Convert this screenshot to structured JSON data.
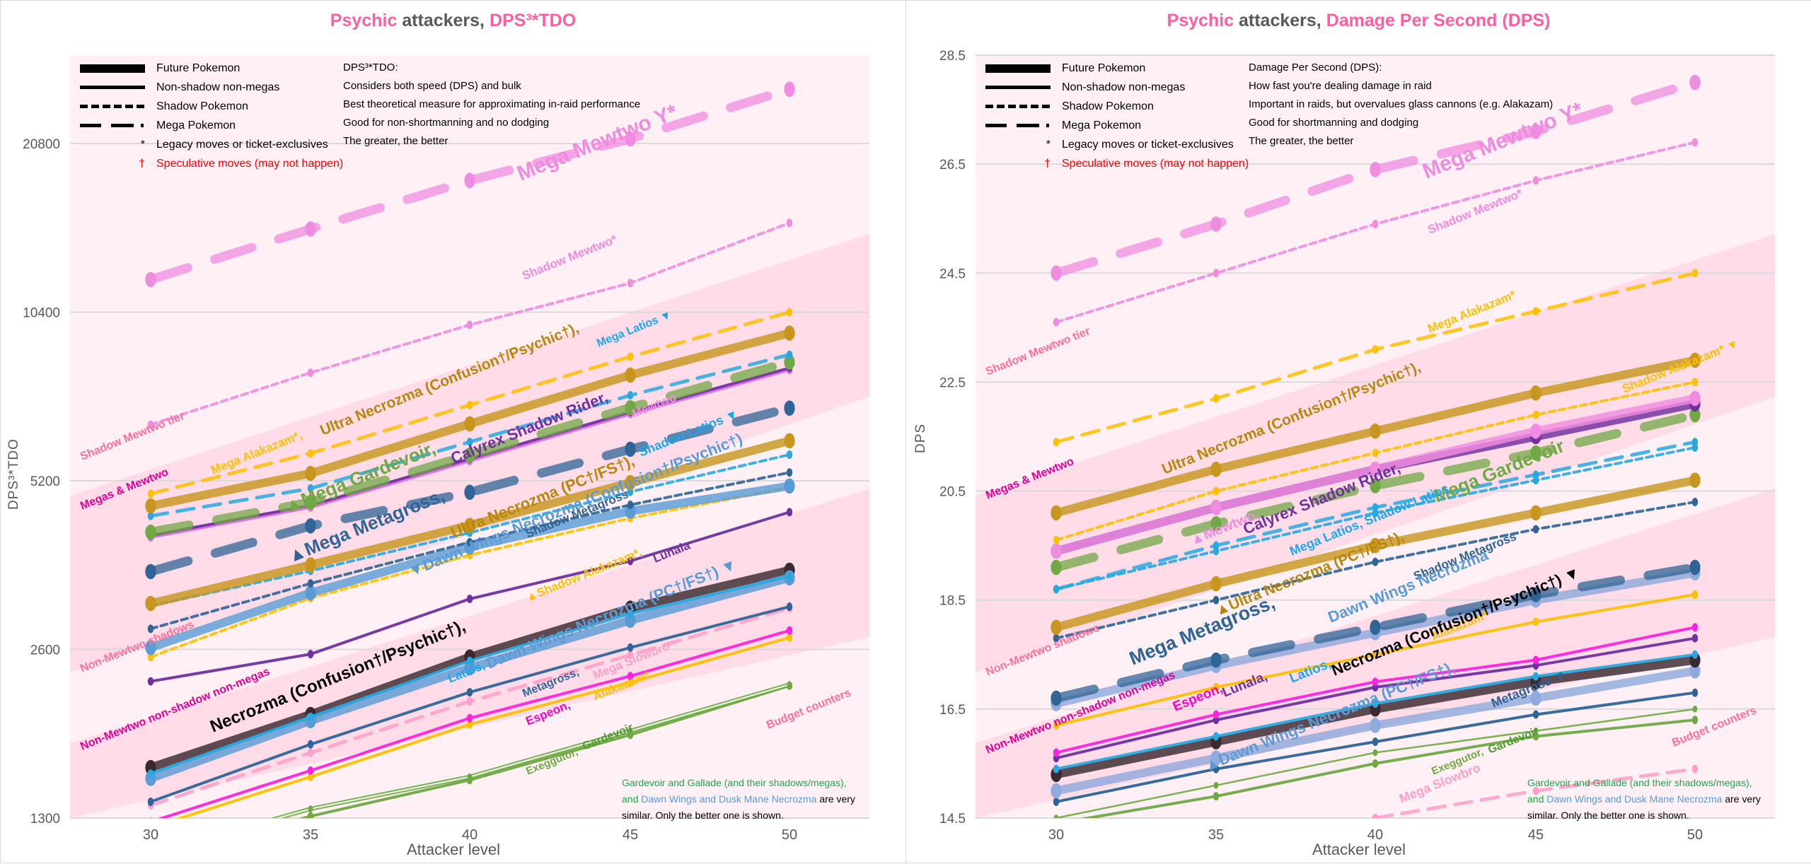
{
  "legend": {
    "future": "Future Pokemon",
    "non_shadow": "Non-shadow non-megas",
    "shadow": "Shadow Pokemon",
    "mega": "Mega Pokemon",
    "legacy_mark": "*",
    "legacy": "Legacy moves or ticket-exclusives",
    "spec_mark": "†",
    "spec": "Speculative moves (may not happen)"
  },
  "note": {
    "part1": "Gardevoir and Gallade (and their shadows/megas),",
    "part2_and": "and ",
    "part2_blue": "Dawn Wings and Dusk Mane Necrozma",
    "part2_rest": " are very",
    "part3": "similar. Only the better one is shown."
  },
  "chart_data": [
    {
      "type": "line",
      "title": "Psychic attackers, DPS³*TDO",
      "title_parts": {
        "a": "Psychic",
        "b": " attackers, ",
        "c": "DPS³*TDO"
      },
      "xlabel": "Attacker level",
      "ylabel": "DPS³*TDO",
      "yscale": "log2",
      "ylim": [
        1300,
        26000
      ],
      "yticks": [
        "1300",
        "2600",
        "5200",
        "10400",
        "20800"
      ],
      "ytick_values": [
        1300,
        2600,
        5200,
        10400,
        20800
      ],
      "x": [
        30,
        35,
        40,
        45,
        50
      ],
      "xticks": [
        "30",
        "35",
        "40",
        "45",
        "50"
      ],
      "grid": true,
      "legend_position": "top-left",
      "description": {
        "heading": "DPS³*TDO:",
        "lines": [
          "Considers both speed (DPS) and bulk",
          "Best theoretical measure for approximating in-raid performance",
          "Good for non-shortmanning and no dodging",
          "The greater, the better"
        ]
      },
      "tiers": [
        {
          "label": "Shadow Mewtwo tier"
        },
        {
          "label": "Megas & Mewtwo"
        },
        {
          "label": "Non-Mewtwo shadows"
        },
        {
          "label": "Non-Mewtwo non-shadow non-megas"
        },
        {
          "label": "Budget counters"
        }
      ],
      "series": [
        {
          "name": "Mega Mewtwo Y*",
          "color": "#f08ce0",
          "style": "mega",
          "values": [
            11890,
            14640,
            17870,
            21200,
            26000
          ]
        },
        {
          "name": "Shadow Mewtwo*",
          "color": "#f08ce0",
          "style": "shadow",
          "values": [
            6550,
            8110,
            9870,
            11720,
            15010
          ]
        },
        {
          "name": "Mega Alakazam*",
          "color": "#ffc000",
          "style": "mega-thin",
          "values": [
            4930,
            5820,
            7100,
            8660,
            10400
          ]
        },
        {
          "name": "Ultra Necrozma (Confusion†/Psychic†)",
          "color": "#c8961e",
          "style": "future",
          "values": [
            4690,
            5360,
            6570,
            8030,
            9540
          ]
        },
        {
          "name": "Mega Latios",
          "color": "#29a8e0",
          "style": "mega-thin",
          "values": [
            4500,
            5040,
            6100,
            7390,
            8730
          ]
        },
        {
          "name": "Mega Gardevoir",
          "color": "#70a844",
          "style": "mega",
          "values": [
            4210,
            4760,
            5780,
            7020,
            8470
          ]
        },
        {
          "name": "Calyrex Shadow Rider",
          "color": "#7030a0",
          "style": "normal",
          "values": [
            4150,
            4700,
            5690,
            6900,
            8270
          ]
        },
        {
          "name": "Mewtwo",
          "color": "#e070e0",
          "style": "normal",
          "values": [
            4120,
            4660,
            5640,
            6840,
            8200
          ]
        },
        {
          "name": "Mega Metagross",
          "color": "#2f6496",
          "style": "mega",
          "values": [
            3580,
            4320,
            4960,
            5920,
            7010
          ]
        },
        {
          "name": "Ultra Necrozma (PC†/FS†)",
          "color": "#c8961e",
          "style": "future",
          "values": [
            3140,
            3680,
            4330,
            5160,
            6130
          ]
        },
        {
          "name": "Shadow Latios",
          "color": "#29a8e0",
          "style": "shadow",
          "values": [
            3110,
            3590,
            4200,
            4970,
            5790
          ]
        },
        {
          "name": "Shadow Metagross",
          "color": "#2f6496",
          "style": "shadow",
          "values": [
            2830,
            3410,
            4040,
            4710,
            5380
          ]
        },
        {
          "name": "Dawn Wings Necrozma (Confusion†/Psychic†)",
          "color": "#5b9bd5",
          "style": "future",
          "values": [
            2620,
            3280,
            3960,
            4590,
            5090
          ]
        },
        {
          "name": "Shadow Alakazam*",
          "color": "#ffc000",
          "style": "shadow",
          "values": [
            2520,
            3210,
            3830,
            4460,
            5060
          ]
        },
        {
          "name": "Lunala",
          "color": "#7030a0",
          "style": "normal",
          "values": [
            2280,
            2550,
            3200,
            3740,
            4570
          ]
        },
        {
          "name": "Latios",
          "color": "#29a8e0",
          "style": "normal",
          "values": [
            1560,
            1970,
            2480,
            3010,
            3510
          ]
        },
        {
          "name": "Dawn Wings Necrozma (PC†/FS†)",
          "color": "#5b9bd5",
          "style": "future",
          "values": [
            1530,
            1940,
            2410,
            2930,
            3490
          ]
        },
        {
          "name": "Necrozma (Confusion†/Psychic†)",
          "color": "#3a2a30",
          "style": "future",
          "values": [
            1600,
            1990,
            2520,
            3080,
            3600
          ]
        },
        {
          "name": "Metagross",
          "color": "#2f6496",
          "style": "normal",
          "values": [
            1390,
            1760,
            2180,
            2620,
            3100
          ]
        },
        {
          "name": "Mega Slowbro",
          "color": "#ff9ec8",
          "style": "mega-thin",
          "values": [
            1370,
            1700,
            2100,
            2540,
            3080
          ]
        },
        {
          "name": "Espeon",
          "color": "#ff22e0",
          "style": "normal",
          "values": [
            1280,
            1580,
            1960,
            2330,
            2810
          ]
        },
        {
          "name": "Alakazam*",
          "color": "#ffc000",
          "style": "normal",
          "values": [
            1250,
            1540,
            1910,
            2270,
            2730
          ]
        },
        {
          "name": "Exeggutor",
          "color": "#70a844",
          "style": "double",
          "values": [
            1120,
            1350,
            1540,
            1860,
            2250
          ]
        },
        {
          "name": "Gardevoir",
          "color": "#70a844",
          "style": "normal",
          "values": [
            1090,
            1310,
            1520,
            1830,
            2240
          ]
        }
      ],
      "annotations": [
        {
          "text": "Mega Mewtwo Y*",
          "color": "#f08ce0"
        },
        {
          "text": "Shadow Mewtwo*",
          "color": "#f08ce0"
        },
        {
          "text": "Mega Alakazam*, ",
          "color": "#ffc000"
        },
        {
          "text": "Ultra Necrozma (Confusion†/Psychic†), ",
          "color": "#b8860b"
        },
        {
          "text": "Mega Latios ▼",
          "color": "#1aa7ec"
        },
        {
          "text": "▲Mega Gardevoir, ",
          "color": "#70a844"
        },
        {
          "text": "Calyrex Shadow Rider, ",
          "color": "#7030a0"
        },
        {
          "text": "Mewtwo",
          "color": "#f08ce0"
        },
        {
          "text": "▲Mega Metagross, ",
          "color": "#2f6496"
        },
        {
          "text": "Ultra Necrozma (PC†/FS†), ",
          "color": "#b8860b"
        },
        {
          "text": "Shadow Latios ▼",
          "color": "#1aa7ec"
        },
        {
          "text": "Shadow Metagross",
          "color": "#2f6496"
        },
        {
          "text": "▼Dawn Wings Necrozma (Confusion†/Psychic†)",
          "color": "#5b9bd5"
        },
        {
          "text": "▲Shadow Alakazam*, ",
          "color": "#ffc000"
        },
        {
          "text": "Lunala",
          "color": "#7030a0"
        },
        {
          "text": "Necrozma (Confusion†/Psychic†), ",
          "color": "#000000"
        },
        {
          "text": "Latios, ",
          "color": "#1aa7ec"
        },
        {
          "text": "Dawn Wings Necrozma (PC†/FS†) ▼",
          "color": "#5b9bd5"
        },
        {
          "text": "Metagross, ",
          "color": "#2f6496"
        },
        {
          "text": "Mega Slowbro",
          "color": "#ff9ec8"
        },
        {
          "text": "Espeon, ",
          "color": "#ff00cc"
        },
        {
          "text": "Alakazam*",
          "color": "#ffc000"
        },
        {
          "text": "Exeggutor, ",
          "color": "#70a844"
        },
        {
          "text": "Gardevoir",
          "color": "#4f9a2e"
        }
      ]
    },
    {
      "type": "line",
      "title": "Psychic attackers, Damage Per Second (DPS)",
      "title_parts": {
        "a": "Psychic",
        "b": " attackers, ",
        "c": "Damage Per Second (DPS)"
      },
      "xlabel": "Attacker level",
      "ylabel": "DPS",
      "yscale": "linear",
      "ylim": [
        14.5,
        28.5
      ],
      "yticks": [
        "14.5",
        "16.5",
        "18.5",
        "20.5",
        "22.5",
        "24.5",
        "26.5",
        "28.5"
      ],
      "ytick_values": [
        14.5,
        16.5,
        18.5,
        20.5,
        22.5,
        24.5,
        26.5,
        28.5
      ],
      "x": [
        30,
        35,
        40,
        45,
        50
      ],
      "xticks": [
        "30",
        "35",
        "40",
        "45",
        "50"
      ],
      "grid": true,
      "legend_position": "top-left",
      "description": {
        "heading": "Damage Per Second (DPS):",
        "lines": [
          "How fast you're dealing damage in raid",
          "Important in raids, but overvalues glass cannons (e.g. Alakazam)",
          "Good for shortmanning and dodging",
          "The greater, the better"
        ]
      },
      "tiers": [
        {
          "label": "Shadow Mewtwo tier"
        },
        {
          "label": "Megas & Mewtwo"
        },
        {
          "label": "Non-Mewtwo shadows"
        },
        {
          "label": "Non-Mewtwo non-shadow non-megas"
        },
        {
          "label": "Budget counters"
        }
      ],
      "series": [
        {
          "name": "Mega Mewtwo Y*",
          "color": "#f08ce0",
          "style": "mega",
          "values": [
            24.5,
            25.4,
            26.4,
            27.1,
            28.0
          ]
        },
        {
          "name": "Shadow Mewtwo*",
          "color": "#f08ce0",
          "style": "shadow",
          "values": [
            23.6,
            24.5,
            25.4,
            26.2,
            26.9
          ]
        },
        {
          "name": "Mega Alakazam*",
          "color": "#ffc000",
          "style": "mega-thin",
          "values": [
            21.4,
            22.2,
            23.1,
            23.8,
            24.5
          ]
        },
        {
          "name": "Ultra Necrozma (Confusion†/Psychic†)",
          "color": "#c8961e",
          "style": "future",
          "values": [
            20.1,
            20.9,
            21.6,
            22.3,
            22.9
          ]
        },
        {
          "name": "Shadow Alakazam*",
          "color": "#ffc000",
          "style": "shadow",
          "values": [
            19.6,
            20.5,
            21.2,
            21.9,
            22.5
          ]
        },
        {
          "name": "Mewtwo",
          "color": "#f08ce0",
          "style": "future",
          "values": [
            19.4,
            20.2,
            20.9,
            21.6,
            22.2
          ]
        },
        {
          "name": "Calyrex Shadow Rider",
          "color": "#7030a0",
          "style": "future",
          "values": [
            19.4,
            20.2,
            20.9,
            21.5,
            22.1
          ]
        },
        {
          "name": "Mega Gardevoir",
          "color": "#70a844",
          "style": "mega",
          "values": [
            19.1,
            19.9,
            20.6,
            21.2,
            21.9
          ]
        },
        {
          "name": "Mega Latios",
          "color": "#29a8e0",
          "style": "mega-thin",
          "values": [
            18.7,
            19.5,
            20.2,
            20.8,
            21.4
          ]
        },
        {
          "name": "Shadow Latios",
          "color": "#29a8e0",
          "style": "shadow",
          "values": [
            18.7,
            19.4,
            20.1,
            20.7,
            21.3
          ]
        },
        {
          "name": "Ultra Necrozma (PC†/FS†)",
          "color": "#c8961e",
          "style": "future",
          "values": [
            18.0,
            18.8,
            19.5,
            20.1,
            20.7
          ]
        },
        {
          "name": "Shadow Metagross",
          "color": "#2f6496",
          "style": "shadow",
          "values": [
            17.8,
            18.5,
            19.2,
            19.8,
            20.3
          ]
        },
        {
          "name": "Mega Metagross",
          "color": "#2f6496",
          "style": "mega",
          "values": [
            16.7,
            17.4,
            18.0,
            18.6,
            19.1
          ]
        },
        {
          "name": "Dawn Wings Necrozma",
          "color": "#8faadc",
          "style": "future",
          "values": [
            16.6,
            17.3,
            17.9,
            18.5,
            19.0
          ]
        },
        {
          "name": "Alakazam*",
          "color": "#ffc000",
          "style": "normal",
          "values": [
            16.2,
            16.9,
            17.5,
            18.1,
            18.6
          ]
        },
        {
          "name": "Espeon",
          "color": "#ff22e0",
          "style": "normal",
          "values": [
            15.7,
            16.4,
            17.0,
            17.4,
            18.0
          ]
        },
        {
          "name": "Lunala",
          "color": "#7030a0",
          "style": "normal",
          "values": [
            15.6,
            16.3,
            16.9,
            17.3,
            17.8
          ]
        },
        {
          "name": "Latios",
          "color": "#29a8e0",
          "style": "normal",
          "values": [
            15.4,
            16.0,
            16.6,
            17.1,
            17.5
          ]
        },
        {
          "name": "Necrozma (Confusion†/Psychic†)",
          "color": "#3a2a30",
          "style": "future",
          "values": [
            15.3,
            15.9,
            16.5,
            17.0,
            17.4
          ]
        },
        {
          "name": "Dawn Wings Necrozma (PC†/FS†)",
          "color": "#8faadc",
          "style": "future",
          "values": [
            15.0,
            15.6,
            16.2,
            16.7,
            17.2
          ]
        },
        {
          "name": "Metagross",
          "color": "#2f6496",
          "style": "normal",
          "values": [
            14.8,
            15.4,
            15.9,
            16.4,
            16.8
          ]
        },
        {
          "name": "Exeggutor",
          "color": "#70a844",
          "style": "thin",
          "values": [
            14.5,
            15.1,
            15.7,
            16.1,
            16.5
          ]
        },
        {
          "name": "Gardevoir",
          "color": "#70a844",
          "style": "normal",
          "values": [
            14.4,
            14.9,
            15.5,
            16.0,
            16.3
          ]
        },
        {
          "name": "Mega Slowbro",
          "color": "#ff9ec8",
          "style": "mega-thin",
          "values": [
            null,
            null,
            14.5,
            15.0,
            15.4
          ]
        }
      ],
      "annotations": [
        {
          "text": "Mega Mewtwo Y*",
          "color": "#f08ce0"
        },
        {
          "text": "Shadow Mewtwo*",
          "color": "#f08ce0"
        },
        {
          "text": "Mega Alakazam*",
          "color": "#ffc000"
        },
        {
          "text": "Ultra Necrozma (Confusion†/Psychic†), ",
          "color": "#b8860b"
        },
        {
          "text": "Shadow Alakazam* ▼",
          "color": "#ffc000"
        },
        {
          "text": "▲Mewtwo, ",
          "color": "#f08ce0"
        },
        {
          "text": "Calyrex Shadow Rider, ",
          "color": "#7030a0"
        },
        {
          "text": "Mega Gardevoir",
          "color": "#70a844"
        },
        {
          "text": "Mega Latios, Shadow Latios",
          "color": "#1aa7ec"
        },
        {
          "text": "▲Ultra Necrozma (PC†/FS†), ",
          "color": "#b8860b"
        },
        {
          "text": "Shadow Metagross",
          "color": "#2f6496"
        },
        {
          "text": "Mega Metagross, ",
          "color": "#2f6496"
        },
        {
          "text": "Dawn Wings Necrozma",
          "color": "#5b9bd5"
        },
        {
          "text": "Alakazam*",
          "color": "#ffc000"
        },
        {
          "text": "Espeon, ",
          "color": "#ff00cc"
        },
        {
          "text": "Lunala, ",
          "color": "#7030a0"
        },
        {
          "text": "Latios, ",
          "color": "#1aa7ec"
        },
        {
          "text": "Necrozma (Confusion†/Psychic†) ▼",
          "color": "#000000"
        },
        {
          "text": "▲Dawn Wings Necrozma (PC†/FS†), ",
          "color": "#5b9bd5"
        },
        {
          "text": "Metagross ▼",
          "color": "#2f6496"
        },
        {
          "text": "Exeggutor, ",
          "color": "#70a844"
        },
        {
          "text": "Gardevoir",
          "color": "#4f9a2e"
        },
        {
          "text": "Mega Slowbro",
          "color": "#ff9ec8"
        }
      ]
    }
  ]
}
